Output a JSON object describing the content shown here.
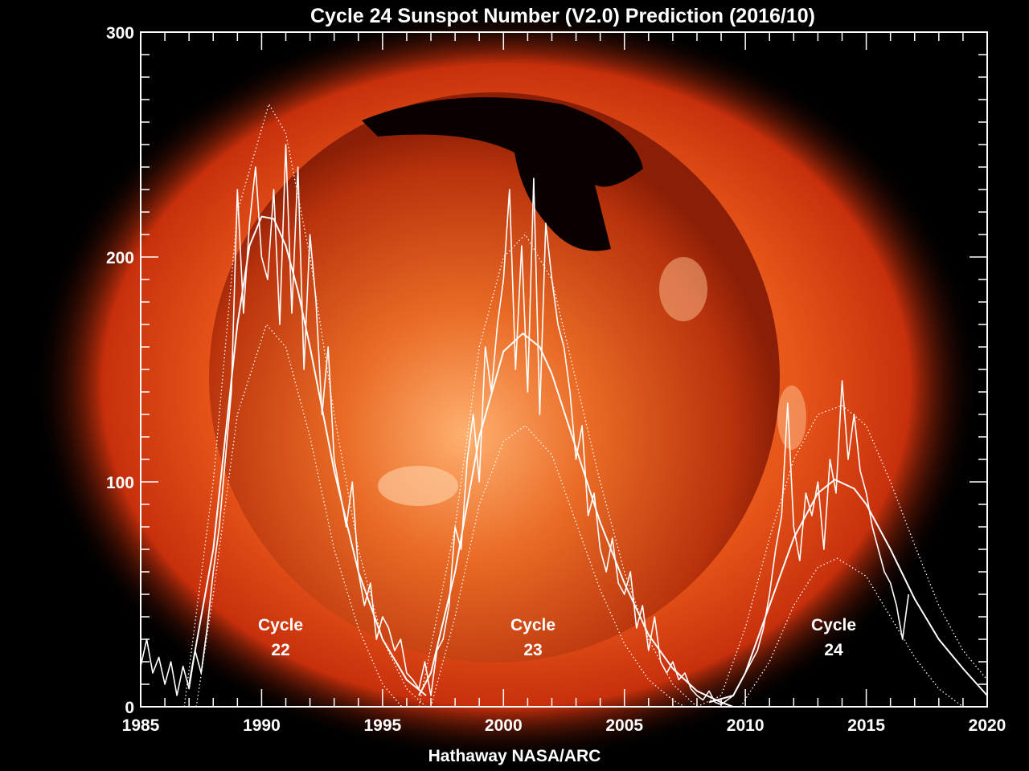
{
  "chart_data": {
    "type": "line",
    "title": "Cycle 24 Sunspot Number (V2.0) Prediction (2016/10)",
    "credit": "Hathaway  NASA/ARC",
    "xlabel": "",
    "ylabel": "",
    "xlim": [
      1985,
      2020
    ],
    "ylim": [
      0,
      300
    ],
    "x_ticks": [
      1985,
      1990,
      1995,
      2000,
      2005,
      2010,
      2015,
      2020
    ],
    "y_ticks": [
      0,
      100,
      200,
      300
    ],
    "grid": false,
    "legend": "none",
    "background": "solar X-ray image of the Sun (orange)",
    "colors": {
      "lines": "#ffffff",
      "background": "#000000",
      "sun_glow": "#e8571a"
    },
    "annotations": [
      {
        "line1": "Cycle",
        "line2": "22"
      },
      {
        "line1": "Cycle",
        "line2": "23"
      },
      {
        "line1": "Cycle",
        "line2": "24"
      }
    ],
    "series": [
      {
        "style": "monthly-observed",
        "points": [
          [
            1985,
            18
          ],
          [
            1985.25,
            30
          ],
          [
            1985.5,
            15
          ],
          [
            1985.75,
            22
          ],
          [
            1986,
            10
          ],
          [
            1986.25,
            20
          ],
          [
            1986.5,
            5
          ],
          [
            1986.75,
            18
          ],
          [
            1987,
            8
          ],
          [
            1987.25,
            25
          ],
          [
            1987.5,
            15
          ],
          [
            1987.75,
            35
          ],
          [
            1988,
            60
          ],
          [
            1988.25,
            80
          ],
          [
            1988.5,
            110
          ],
          [
            1988.75,
            140
          ],
          [
            1989,
            230
          ],
          [
            1989.25,
            175
          ],
          [
            1989.5,
            215
          ],
          [
            1989.75,
            240
          ],
          [
            1990,
            200
          ],
          [
            1990.25,
            190
          ],
          [
            1990.5,
            230
          ],
          [
            1990.75,
            170
          ],
          [
            1991,
            250
          ],
          [
            1991.25,
            175
          ],
          [
            1991.5,
            240
          ],
          [
            1991.75,
            150
          ],
          [
            1992,
            210
          ],
          [
            1992.25,
            180
          ],
          [
            1992.5,
            130
          ],
          [
            1992.75,
            160
          ],
          [
            1993,
            110
          ],
          [
            1993.25,
            95
          ],
          [
            1993.5,
            80
          ],
          [
            1993.75,
            100
          ],
          [
            1994,
            60
          ],
          [
            1994.25,
            45
          ],
          [
            1994.5,
            55
          ],
          [
            1994.75,
            30
          ],
          [
            1995,
            40
          ],
          [
            1995.25,
            35
          ],
          [
            1995.5,
            25
          ],
          [
            1995.75,
            30
          ],
          [
            1996,
            15
          ],
          [
            1996.25,
            12
          ],
          [
            1996.5,
            8
          ],
          [
            1996.75,
            20
          ],
          [
            1997,
            5
          ],
          [
            1997.25,
            25
          ],
          [
            1997.5,
            30
          ],
          [
            1997.75,
            45
          ],
          [
            1998,
            80
          ],
          [
            1998.25,
            70
          ],
          [
            1998.5,
            110
          ],
          [
            1998.75,
            130
          ],
          [
            1999,
            100
          ],
          [
            1999.25,
            160
          ],
          [
            1999.5,
            140
          ],
          [
            1999.75,
            170
          ],
          [
            2000,
            190
          ],
          [
            2000.25,
            230
          ],
          [
            2000.5,
            150
          ],
          [
            2000.75,
            205
          ],
          [
            2001,
            140
          ],
          [
            2001.25,
            235
          ],
          [
            2001.5,
            130
          ],
          [
            2001.75,
            215
          ],
          [
            2002,
            190
          ],
          [
            2002.25,
            170
          ],
          [
            2002.5,
            160
          ],
          [
            2002.75,
            140
          ],
          [
            2003,
            110
          ],
          [
            2003.25,
            125
          ],
          [
            2003.5,
            85
          ],
          [
            2003.75,
            95
          ],
          [
            2004,
            70
          ],
          [
            2004.25,
            60
          ],
          [
            2004.5,
            75
          ],
          [
            2004.75,
            55
          ],
          [
            2005,
            50
          ],
          [
            2005.25,
            60
          ],
          [
            2005.5,
            35
          ],
          [
            2005.75,
            45
          ],
          [
            2006,
            25
          ],
          [
            2006.25,
            40
          ],
          [
            2006.5,
            20
          ],
          [
            2006.75,
            15
          ],
          [
            2007,
            20
          ],
          [
            2007.25,
            12
          ],
          [
            2007.5,
            15
          ],
          [
            2007.75,
            8
          ],
          [
            2008,
            5
          ],
          [
            2008.25,
            3
          ],
          [
            2008.5,
            7
          ],
          [
            2008.75,
            2
          ],
          [
            2009,
            1
          ],
          [
            2009.25,
            3
          ],
          [
            2009.5,
            5
          ],
          [
            2009.75,
            10
          ],
          [
            2010,
            15
          ],
          [
            2010.25,
            20
          ],
          [
            2010.5,
            25
          ],
          [
            2010.75,
            35
          ],
          [
            2011,
            50
          ],
          [
            2011.25,
            70
          ],
          [
            2011.5,
            85
          ],
          [
            2011.75,
            135
          ],
          [
            2012,
            80
          ],
          [
            2012.25,
            65
          ],
          [
            2012.5,
            95
          ],
          [
            2012.75,
            85
          ],
          [
            2013,
            100
          ],
          [
            2013.25,
            70
          ],
          [
            2013.5,
            110
          ],
          [
            2013.75,
            95
          ],
          [
            2014,
            145
          ],
          [
            2014.25,
            110
          ],
          [
            2014.5,
            130
          ],
          [
            2014.75,
            105
          ],
          [
            2015,
            95
          ],
          [
            2015.25,
            80
          ],
          [
            2015.5,
            70
          ],
          [
            2015.75,
            60
          ],
          [
            2016,
            55
          ],
          [
            2016.25,
            45
          ],
          [
            2016.5,
            30
          ],
          [
            2016.75,
            50
          ]
        ]
      },
      {
        "style": "fit",
        "cycle": "22",
        "points": [
          [
            1987,
            10
          ],
          [
            1988,
            70
          ],
          [
            1989,
            170
          ],
          [
            1989.5,
            205
          ],
          [
            1990,
            218
          ],
          [
            1990.5,
            217
          ],
          [
            1991,
            205
          ],
          [
            1991.5,
            185
          ],
          [
            1992,
            160
          ],
          [
            1993,
            105
          ],
          [
            1994,
            60
          ],
          [
            1995,
            30
          ],
          [
            1996,
            12
          ],
          [
            1996.8,
            5
          ]
        ]
      },
      {
        "style": "fit-upper",
        "cycle": "22",
        "points": [
          [
            1986.8,
            0
          ],
          [
            1988,
            100
          ],
          [
            1989,
            220
          ],
          [
            1990.3,
            268
          ],
          [
            1991,
            255
          ],
          [
            1992,
            200
          ],
          [
            1993,
            130
          ],
          [
            1994,
            70
          ],
          [
            1995,
            30
          ],
          [
            1996,
            8
          ],
          [
            1996.8,
            0
          ]
        ]
      },
      {
        "style": "fit-lower",
        "cycle": "22",
        "points": [
          [
            1987.3,
            0
          ],
          [
            1988,
            50
          ],
          [
            1989,
            130
          ],
          [
            1990.2,
            170
          ],
          [
            1991,
            160
          ],
          [
            1992,
            120
          ],
          [
            1993,
            70
          ],
          [
            1994,
            35
          ],
          [
            1995,
            10
          ],
          [
            1995.8,
            0
          ]
        ]
      },
      {
        "style": "fit",
        "cycle": "23",
        "points": [
          [
            1996.5,
            5
          ],
          [
            1997,
            15
          ],
          [
            1998,
            60
          ],
          [
            1999,
            120
          ],
          [
            2000,
            158
          ],
          [
            2000.8,
            166
          ],
          [
            2001.5,
            160
          ],
          [
            2002,
            148
          ],
          [
            2003,
            115
          ],
          [
            2004,
            82
          ],
          [
            2005,
            55
          ],
          [
            2006,
            32
          ],
          [
            2007,
            17
          ],
          [
            2008,
            7
          ],
          [
            2009,
            2
          ],
          [
            2009.5,
            0
          ]
        ]
      },
      {
        "style": "fit-upper",
        "cycle": "23",
        "points": [
          [
            1996.5,
            0
          ],
          [
            1998,
            80
          ],
          [
            1999,
            160
          ],
          [
            2000,
            200
          ],
          [
            2000.9,
            210
          ],
          [
            2002,
            190
          ],
          [
            2003,
            145
          ],
          [
            2004,
            100
          ],
          [
            2005,
            60
          ],
          [
            2006,
            30
          ],
          [
            2007,
            10
          ],
          [
            2008,
            0
          ]
        ]
      },
      {
        "style": "fit-lower",
        "cycle": "23",
        "points": [
          [
            1997,
            0
          ],
          [
            1998,
            40
          ],
          [
            1999,
            90
          ],
          [
            2000,
            118
          ],
          [
            2000.9,
            125
          ],
          [
            2002,
            112
          ],
          [
            2003,
            82
          ],
          [
            2004,
            52
          ],
          [
            2005,
            28
          ],
          [
            2006,
            12
          ],
          [
            2007,
            3
          ],
          [
            2007.5,
            0
          ]
        ]
      },
      {
        "style": "fit",
        "cycle": "24",
        "points": [
          [
            2008.5,
            2
          ],
          [
            2009.5,
            5
          ],
          [
            2010,
            15
          ],
          [
            2011,
            45
          ],
          [
            2012,
            75
          ],
          [
            2013,
            95
          ],
          [
            2013.7,
            101
          ],
          [
            2014.5,
            97
          ],
          [
            2015,
            90
          ],
          [
            2016,
            70
          ],
          [
            2017,
            48
          ],
          [
            2018,
            30
          ],
          [
            2019,
            17
          ],
          [
            2020,
            5
          ]
        ]
      },
      {
        "style": "fit-upper",
        "cycle": "24",
        "points": [
          [
            2008,
            0
          ],
          [
            2009,
            5
          ],
          [
            2010,
            35
          ],
          [
            2011,
            75
          ],
          [
            2012,
            110
          ],
          [
            2013,
            130
          ],
          [
            2014,
            134
          ],
          [
            2015,
            125
          ],
          [
            2016,
            100
          ],
          [
            2017,
            72
          ],
          [
            2018,
            45
          ],
          [
            2019,
            25
          ],
          [
            2020,
            12
          ]
        ]
      },
      {
        "style": "fit-lower",
        "cycle": "24",
        "points": [
          [
            2009.8,
            0
          ],
          [
            2011,
            20
          ],
          [
            2012,
            45
          ],
          [
            2013,
            62
          ],
          [
            2013.8,
            66
          ],
          [
            2015,
            58
          ],
          [
            2016,
            40
          ],
          [
            2017,
            22
          ],
          [
            2018,
            8
          ],
          [
            2019,
            0
          ]
        ]
      }
    ]
  }
}
